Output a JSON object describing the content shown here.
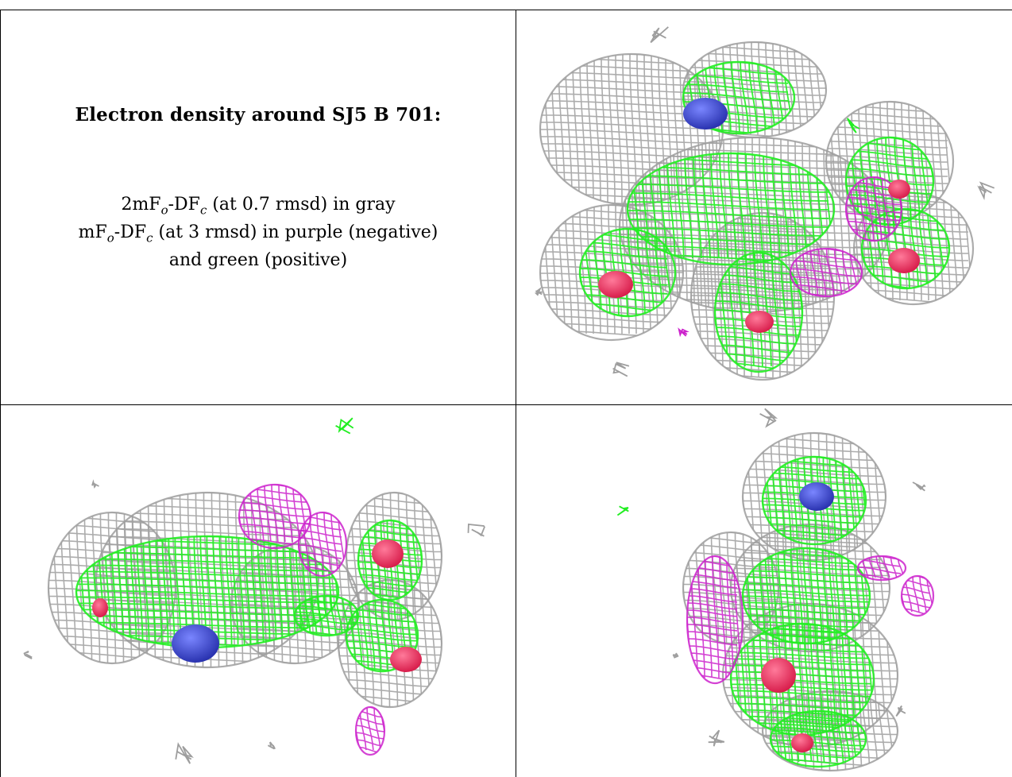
{
  "caption": {
    "title": "Electron density around SJ5 B 701:",
    "line1": {
      "a": "2mF",
      "o": "o",
      "b": "-DF",
      "c": "c",
      "rest": " (at 0.7 rmsd) in gray"
    },
    "line2": {
      "a": "mF",
      "o": "o",
      "b": "-DF",
      "c": "c",
      "rest": " (at 3 rmsd) in purple (negative)"
    },
    "line3": "and green (positive)"
  },
  "colors": {
    "map_2fofc": "#9e9e9e",
    "map_fofc_positive": "#22ee22",
    "map_fofc_negative": "#cc22cc",
    "atom_oxygen": "#d81e4c",
    "atom_nitrogen": "#2a33b0"
  },
  "panels": [
    {
      "name": "view-top-right"
    },
    {
      "name": "view-bottom-left"
    },
    {
      "name": "view-bottom-right"
    }
  ]
}
